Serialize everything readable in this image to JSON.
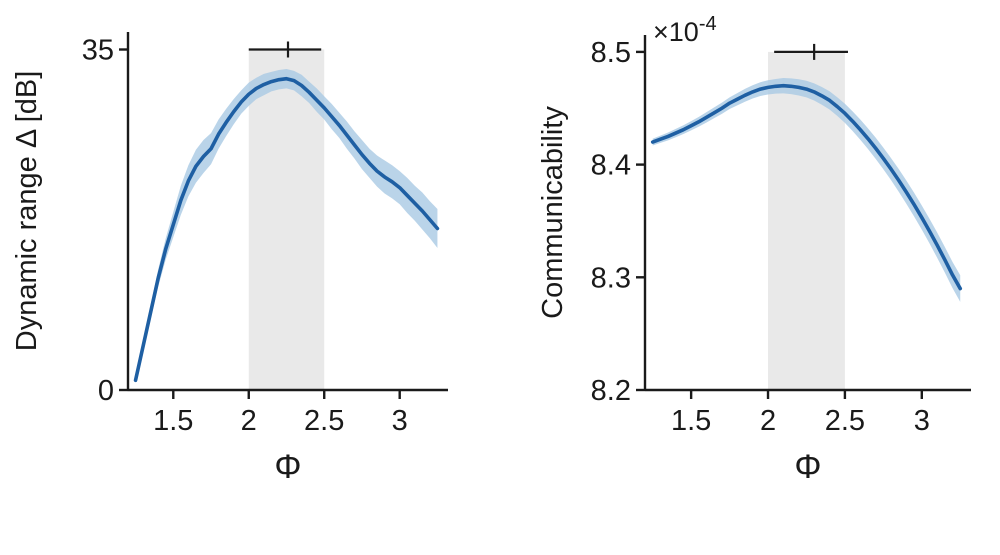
{
  "colors": {
    "background": "#ffffff",
    "line": "#1e5fa3",
    "band": "#a9c9e4",
    "region": "#e9e9e9",
    "axis": "#1a1a1a",
    "errorbar": "#1a1a1a"
  },
  "chart_data": [
    {
      "type": "line",
      "title": "",
      "xlabel": "Φ",
      "ylabel": "Dynamic range Δ [dB]",
      "xlim": [
        1.2,
        3.32
      ],
      "ylim": [
        0,
        36.8
      ],
      "grid": false,
      "multiplier": null,
      "xticks": [
        {
          "v": 1.5,
          "label": "1.5"
        },
        {
          "v": 2,
          "label": "2"
        },
        {
          "v": 2.5,
          "label": "2.5"
        },
        {
          "v": 3,
          "label": "3"
        }
      ],
      "yticks": [
        {
          "v": 0,
          "label": "0"
        },
        {
          "v": 35,
          "label": "35"
        }
      ],
      "shaded_region": {
        "x0": 2,
        "x1": 2.5,
        "y0": 0,
        "y1": 35
      },
      "errorbar": {
        "y": 35,
        "x0": 2.0,
        "x1": 2.48,
        "center": 2.26
      },
      "series": [
        {
          "name": "mean with confidence band",
          "x": [
            1.25,
            1.3,
            1.35,
            1.4,
            1.45,
            1.5,
            1.55,
            1.6,
            1.65,
            1.7,
            1.75,
            1.8,
            1.85,
            1.9,
            1.95,
            2,
            2.05,
            2.1,
            2.15,
            2.2,
            2.25,
            2.3,
            2.35,
            2.4,
            2.45,
            2.5,
            2.55,
            2.6,
            2.65,
            2.7,
            2.75,
            2.8,
            2.85,
            2.9,
            2.95,
            3,
            3.05,
            3.1,
            3.15,
            3.2,
            3.25
          ],
          "y": [
            1.0,
            4.5,
            8.0,
            11.5,
            14.5,
            17.0,
            19.5,
            21.5,
            23.0,
            24.0,
            24.8,
            26.3,
            27.5,
            28.6,
            29.6,
            30.4,
            31.0,
            31.4,
            31.7,
            31.9,
            32.0,
            31.8,
            31.3,
            30.6,
            29.8,
            29.0,
            28.1,
            27.2,
            26.2,
            25.2,
            24.2,
            23.3,
            22.5,
            21.9,
            21.4,
            20.8,
            20.0,
            19.2,
            18.4,
            17.5,
            16.6
          ],
          "band": [
            0.3,
            0.5,
            0.7,
            0.9,
            1.1,
            1.3,
            1.5,
            1.6,
            1.7,
            1.7,
            1.6,
            1.5,
            1.4,
            1.3,
            1.2,
            1.2,
            1.1,
            1.1,
            1.0,
            1.0,
            1.0,
            1.0,
            1.1,
            1.1,
            1.2,
            1.2,
            1.3,
            1.3,
            1.4,
            1.4,
            1.5,
            1.5,
            1.6,
            1.7,
            1.7,
            1.7,
            1.8,
            1.8,
            1.9,
            1.9,
            2.0
          ]
        }
      ]
    },
    {
      "type": "line",
      "title": "",
      "xlabel": "Φ",
      "ylabel": "Communicability",
      "xlim": [
        1.2,
        3.32
      ],
      "ylim": [
        8.2,
        8.515
      ],
      "grid": false,
      "multiplier": {
        "base": "×10",
        "exp": "-4"
      },
      "xticks": [
        {
          "v": 1.5,
          "label": "1.5"
        },
        {
          "v": 2,
          "label": "2"
        },
        {
          "v": 2.5,
          "label": "2.5"
        },
        {
          "v": 3,
          "label": "3"
        }
      ],
      "yticks": [
        {
          "v": 8.2,
          "label": "8.2"
        },
        {
          "v": 8.3,
          "label": "8.3"
        },
        {
          "v": 8.4,
          "label": "8.4"
        },
        {
          "v": 8.5,
          "label": "8.5"
        }
      ],
      "shaded_region": {
        "x0": 2,
        "x1": 2.5,
        "y0": 8.2,
        "y1": 8.5
      },
      "errorbar": {
        "y": 8.5,
        "x0": 2.04,
        "x1": 2.52,
        "center": 2.3
      },
      "series": [
        {
          "name": "mean with confidence band",
          "x": [
            1.25,
            1.3,
            1.35,
            1.4,
            1.45,
            1.5,
            1.55,
            1.6,
            1.65,
            1.7,
            1.75,
            1.8,
            1.85,
            1.9,
            1.95,
            2,
            2.05,
            2.1,
            2.15,
            2.2,
            2.25,
            2.3,
            2.35,
            2.4,
            2.45,
            2.5,
            2.55,
            2.6,
            2.65,
            2.7,
            2.75,
            2.8,
            2.85,
            2.9,
            2.95,
            3,
            3.05,
            3.1,
            3.15,
            3.2,
            3.25
          ],
          "y": [
            8.42,
            8.4225,
            8.425,
            8.428,
            8.431,
            8.4345,
            8.438,
            8.442,
            8.446,
            8.45,
            8.4545,
            8.458,
            8.4615,
            8.4645,
            8.467,
            8.4685,
            8.4695,
            8.47,
            8.4695,
            8.4685,
            8.467,
            8.4645,
            8.461,
            8.457,
            8.4515,
            8.4455,
            8.4385,
            8.431,
            8.423,
            8.4145,
            8.4055,
            8.396,
            8.386,
            8.3755,
            8.3645,
            8.353,
            8.341,
            8.3285,
            8.3155,
            8.302,
            8.29
          ],
          "band": [
            0.003,
            0.0032,
            0.0035,
            0.0037,
            0.0039,
            0.0041,
            0.0043,
            0.0046,
            0.0048,
            0.005,
            0.0052,
            0.0054,
            0.0057,
            0.0059,
            0.0061,
            0.0063,
            0.0065,
            0.0068,
            0.007,
            0.0072,
            0.0074,
            0.0076,
            0.0079,
            0.0081,
            0.0083,
            0.0085,
            0.0087,
            0.009,
            0.0092,
            0.0094,
            0.0096,
            0.0098,
            0.0101,
            0.0103,
            0.0105,
            0.0107,
            0.0109,
            0.0112,
            0.0114,
            0.0116,
            0.0118
          ]
        }
      ]
    }
  ]
}
